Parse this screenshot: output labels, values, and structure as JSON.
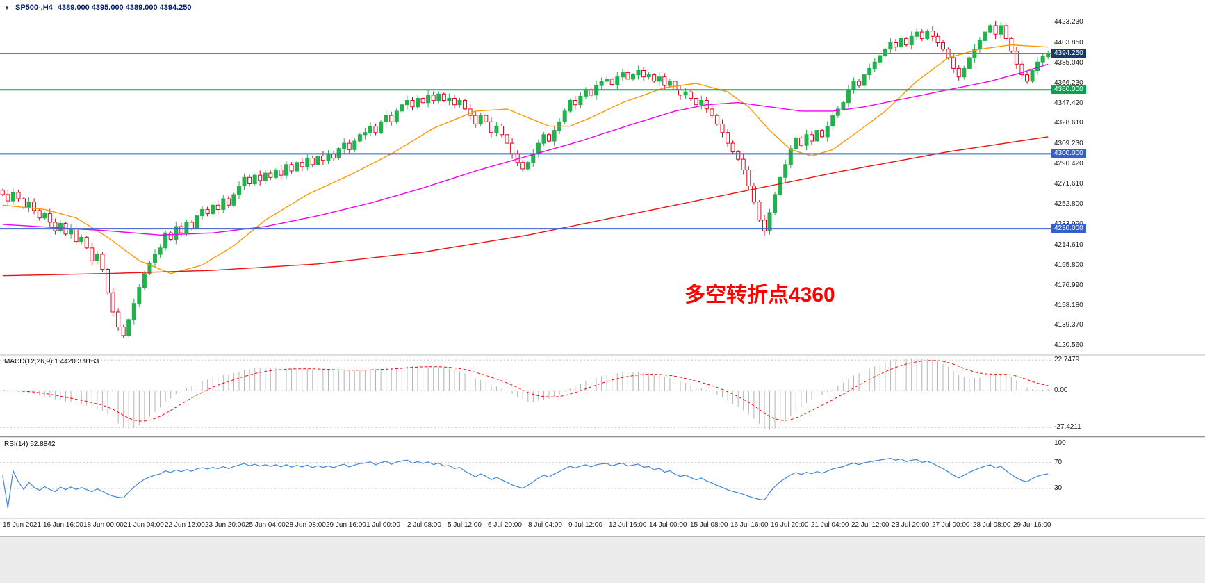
{
  "header": {
    "collapse_icon": "▼",
    "symbol_period": "SP500-,H4",
    "ohlc": "4389.000 4395.000 4389.000 4394.250"
  },
  "chart_data": {
    "type": "candlestick",
    "symbol": "SP500-",
    "timeframe": "H4",
    "ylim": [
      4113,
      4444
    ],
    "price_ticks": [
      "4423.230",
      "4403.850",
      "4385.040",
      "4366.230",
      "4347.420",
      "4328.610",
      "4309.230",
      "4290.420",
      "4271.610",
      "4252.800",
      "4233.990",
      "4214.610",
      "4195.800",
      "4176.990",
      "4158.180",
      "4139.370",
      "4120.560"
    ],
    "x_labels": [
      "15 Jun 2021",
      "16 Jun 16:00",
      "18 Jun 00:00",
      "21 Jun 04:00",
      "22 Jun 12:00",
      "23 Jun 20:00",
      "25 Jun 04:00",
      "28 Jun 08:00",
      "29 Jun 16:00",
      "1 Jul 00:00",
      "2 Jul 08:00",
      "5 Jul 12:00",
      "6 Jul 20:00",
      "8 Jul 04:00",
      "9 Jul 12:00",
      "12 Jul 16:00",
      "14 Jul 00:00",
      "15 Jul 08:00",
      "16 Jul 16:00",
      "19 Jul 20:00",
      "21 Jul 04:00",
      "22 Jul 12:00",
      "23 Jul 20:00",
      "27 Jul 00:00",
      "28 Jul 08:00",
      "29 Jul 16:00"
    ],
    "first_open": 4266,
    "closes": [
      4262,
      4256,
      4264,
      4258,
      4250,
      4255,
      4247,
      4240,
      4244,
      4236,
      4228,
      4235,
      4225,
      4230,
      4218,
      4222,
      4212,
      4200,
      4206,
      4192,
      4170,
      4152,
      4138,
      4130,
      4145,
      4160,
      4175,
      4188,
      4198,
      4206,
      4212,
      4226,
      4220,
      4232,
      4226,
      4236,
      4230,
      4242,
      4248,
      4244,
      4252,
      4248,
      4258,
      4252,
      4262,
      4270,
      4278,
      4272,
      4280,
      4275,
      4282,
      4278,
      4285,
      4280,
      4290,
      4284,
      4292,
      4288,
      4296,
      4290,
      4298,
      4294,
      4300,
      4296,
      4305,
      4310,
      4304,
      4312,
      4318,
      4320,
      4326,
      4320,
      4330,
      4336,
      4330,
      4340,
      4346,
      4350,
      4344,
      4352,
      4348,
      4355,
      4350,
      4356,
      4350,
      4352,
      4346,
      4350,
      4342,
      4336,
      4328,
      4336,
      4330,
      4320,
      4326,
      4318,
      4310,
      4300,
      4292,
      4286,
      4292,
      4300,
      4310,
      4318,
      4312,
      4322,
      4330,
      4340,
      4350,
      4346,
      4354,
      4360,
      4355,
      4364,
      4368,
      4370,
      4365,
      4372,
      4376,
      4370,
      4374,
      4378,
      4372,
      4374,
      4368,
      4372,
      4364,
      4368,
      4360,
      4355,
      4358,
      4352,
      4346,
      4350,
      4342,
      4336,
      4328,
      4320,
      4310,
      4302,
      4295,
      4285,
      4270,
      4255,
      4238,
      4228,
      4245,
      4262,
      4278,
      4290,
      4305,
      4315,
      4308,
      4318,
      4312,
      4322,
      4316,
      4326,
      4336,
      4342,
      4348,
      4360,
      4368,
      4364,
      4374,
      4380,
      4386,
      4392,
      4398,
      4404,
      4400,
      4408,
      4402,
      4410,
      4414,
      4408,
      4415,
      4410,
      4404,
      4398,
      4390,
      4380,
      4372,
      4380,
      4390,
      4398,
      4406,
      4414,
      4420,
      4412,
      4420,
      4408,
      4396,
      4384,
      4374,
      4368,
      4378,
      4386,
      4391,
      4394.25
    ],
    "colors": {
      "up": "#22B14C",
      "down": "#E8001C"
    },
    "moving_averages": [
      {
        "name": "ma-fast-orange",
        "color": "#FF9900",
        "points": [
          [
            0,
            4252
          ],
          [
            8,
            4248
          ],
          [
            14,
            4240
          ],
          [
            20,
            4222
          ],
          [
            26,
            4200
          ],
          [
            32,
            4188
          ],
          [
            38,
            4196
          ],
          [
            44,
            4214
          ],
          [
            50,
            4238
          ],
          [
            58,
            4262
          ],
          [
            66,
            4280
          ],
          [
            74,
            4300
          ],
          [
            82,
            4324
          ],
          [
            90,
            4340
          ],
          [
            96,
            4342
          ],
          [
            100,
            4334
          ],
          [
            104,
            4326
          ],
          [
            108,
            4326
          ],
          [
            112,
            4334
          ],
          [
            118,
            4348
          ],
          [
            126,
            4362
          ],
          [
            132,
            4366
          ],
          [
            138,
            4358
          ],
          [
            142,
            4344
          ],
          [
            146,
            4322
          ],
          [
            150,
            4304
          ],
          [
            154,
            4298
          ],
          [
            158,
            4304
          ],
          [
            162,
            4318
          ],
          [
            168,
            4340
          ],
          [
            174,
            4368
          ],
          [
            180,
            4390
          ],
          [
            186,
            4398
          ],
          [
            192,
            4402
          ],
          [
            199,
            4400
          ]
        ]
      },
      {
        "name": "ma-mid-magenta",
        "color": "#F000F0",
        "points": [
          [
            0,
            4234
          ],
          [
            10,
            4231
          ],
          [
            20,
            4228
          ],
          [
            30,
            4224
          ],
          [
            40,
            4226
          ],
          [
            50,
            4232
          ],
          [
            60,
            4242
          ],
          [
            70,
            4254
          ],
          [
            80,
            4268
          ],
          [
            90,
            4284
          ],
          [
            100,
            4298
          ],
          [
            110,
            4312
          ],
          [
            120,
            4328
          ],
          [
            128,
            4340
          ],
          [
            134,
            4346
          ],
          [
            140,
            4348
          ],
          [
            146,
            4344
          ],
          [
            152,
            4340
          ],
          [
            158,
            4340
          ],
          [
            164,
            4344
          ],
          [
            170,
            4350
          ],
          [
            176,
            4356
          ],
          [
            182,
            4362
          ],
          [
            188,
            4368
          ],
          [
            194,
            4376
          ],
          [
            199,
            4384
          ]
        ]
      },
      {
        "name": "ma-slow-red",
        "color": "#EE1111",
        "points": [
          [
            0,
            4186
          ],
          [
            20,
            4188
          ],
          [
            40,
            4191
          ],
          [
            60,
            4197
          ],
          [
            80,
            4208
          ],
          [
            100,
            4224
          ],
          [
            120,
            4244
          ],
          [
            140,
            4264
          ],
          [
            160,
            4284
          ],
          [
            180,
            4302
          ],
          [
            199,
            4316
          ]
        ]
      }
    ],
    "price_lines": [
      {
        "label": "4394.250",
        "value": 4394.25,
        "tag_color": "#1B3A66",
        "line_color": "#5F7FB8",
        "width": 1
      },
      {
        "label": "4360.000",
        "value": 4360,
        "tag_color": "#00A651",
        "line_color": "#00A651",
        "width": 2
      },
      {
        "label": "4300.000",
        "value": 4300,
        "tag_color": "#3A5FCD",
        "line_color": "#3A5FCD",
        "width": 2
      },
      {
        "label": "4230.000",
        "value": 4230,
        "tag_color": "#3A5FCD",
        "line_color": "#3A5FCD",
        "width": 2
      }
    ],
    "macd": {
      "label": "MACD(12,26,9)",
      "values_text": "1.4420 3.9163",
      "params": [
        12,
        26,
        9
      ],
      "axis_labels": [
        "22.7479",
        "0.00",
        "-27.4211"
      ],
      "ylim": [
        -34,
        26
      ],
      "hist_color": "#b4b4b4",
      "signal_color": "#FF0000"
    },
    "rsi": {
      "label": "RSI(14)",
      "value_text": "52.8842",
      "period": 14,
      "axis_labels": [
        "100",
        "70",
        "30"
      ],
      "levels": [
        70,
        30
      ],
      "ylim": [
        -15,
        107
      ],
      "line_color": "#3E86D6"
    },
    "annotation": {
      "text": "多空转折点4360",
      "color": "#FF0000"
    }
  }
}
